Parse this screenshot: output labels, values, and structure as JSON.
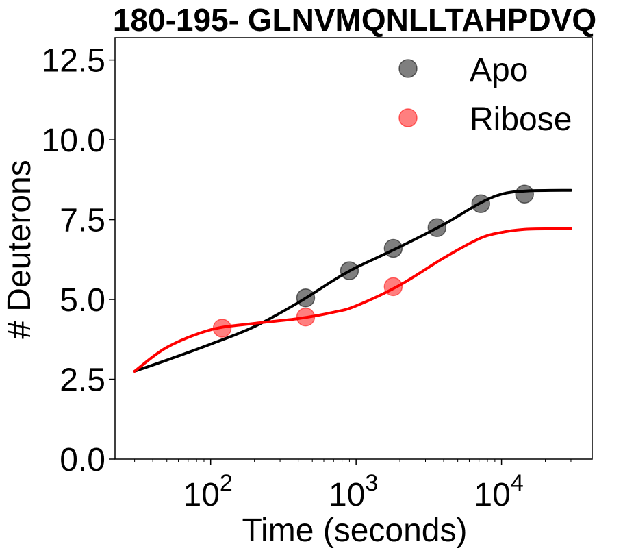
{
  "chart_data": {
    "type": "scatter",
    "title": "180-195- GLNVMQNLLTAHPDVQ",
    "xlabel": "Time (seconds)",
    "ylabel": "# Deuterons",
    "xscale": "log",
    "xlim": [
      22,
      42000
    ],
    "ylim": [
      0,
      13.2
    ],
    "yticks": [
      "0.0",
      "2.5",
      "5.0",
      "7.5",
      "10.0",
      "12.5"
    ],
    "xticks": [
      {
        "base": "10",
        "exp": "2"
      },
      {
        "base": "10",
        "exp": "3"
      },
      {
        "base": "10",
        "exp": "4"
      }
    ],
    "grid": false,
    "legend_position": "top-right",
    "series": [
      {
        "name": "Apo",
        "marker_color": "#000000",
        "line_color": "#000000",
        "x": [
          450,
          900,
          1800,
          3600,
          7200,
          14400
        ],
        "y": [
          5.05,
          5.9,
          6.6,
          7.25,
          8.0,
          8.3
        ],
        "fit_x": [
          30,
          50,
          100,
          200,
          400,
          700,
          1000,
          2000,
          4000,
          7000,
          10000,
          15000,
          30000
        ],
        "fit_y": [
          2.75,
          3.1,
          3.6,
          4.15,
          4.9,
          5.6,
          6.0,
          6.65,
          7.35,
          8.0,
          8.3,
          8.4,
          8.42
        ]
      },
      {
        "name": "Ribose",
        "marker_color": "#ff0000",
        "line_color": "#ff0000",
        "x": [
          120,
          450,
          1800
        ],
        "y": [
          4.1,
          4.45,
          5.4
        ],
        "fit_x": [
          30,
          50,
          100,
          200,
          400,
          700,
          1000,
          2000,
          4000,
          7000,
          10000,
          15000,
          30000
        ],
        "fit_y": [
          2.75,
          3.5,
          4.05,
          4.25,
          4.4,
          4.6,
          4.8,
          5.45,
          6.3,
          6.9,
          7.1,
          7.2,
          7.22
        ]
      }
    ]
  }
}
